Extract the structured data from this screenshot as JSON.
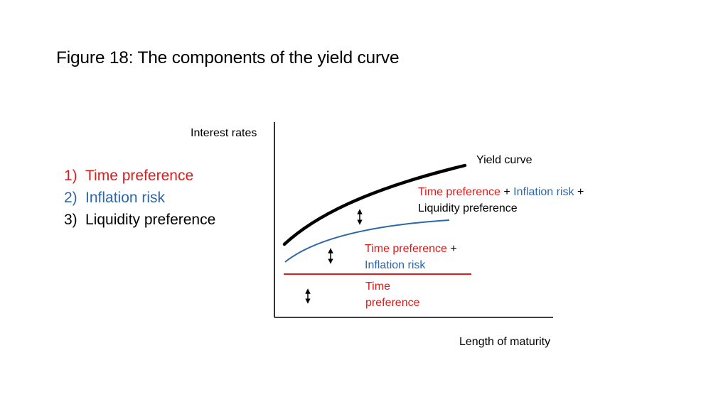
{
  "title": "Figure 18: The components of the yield curve",
  "list": [
    {
      "num": "1)",
      "text": "Time preference",
      "color": "#e11a1a"
    },
    {
      "num": "2)",
      "text": "Inflation risk",
      "color": "#2e66a8"
    },
    {
      "num": "3)",
      "text": "Liquidity preference",
      "color": "#000000"
    }
  ],
  "axes": {
    "y_label": "Interest rates",
    "x_label": "Length of maturity"
  },
  "curves": {
    "yield_curve": {
      "label": "Yield curve",
      "color": "#000000"
    },
    "top_label": {
      "time_preference": "Time preference",
      "plus1": " + ",
      "inflation_risk": "Inflation risk",
      "plus2": " +",
      "liquidity_preference": "Liquidity preference"
    },
    "middle_label": {
      "time_preference": "Time preference",
      "plus": " +",
      "inflation_risk": "Inflation risk",
      "color": "#2e66a8"
    },
    "bottom_label": {
      "line1": "Time",
      "line2": "preference",
      "color": "#e11a1a"
    }
  },
  "icons": {
    "arrow": "double-headed-vertical-arrow"
  }
}
